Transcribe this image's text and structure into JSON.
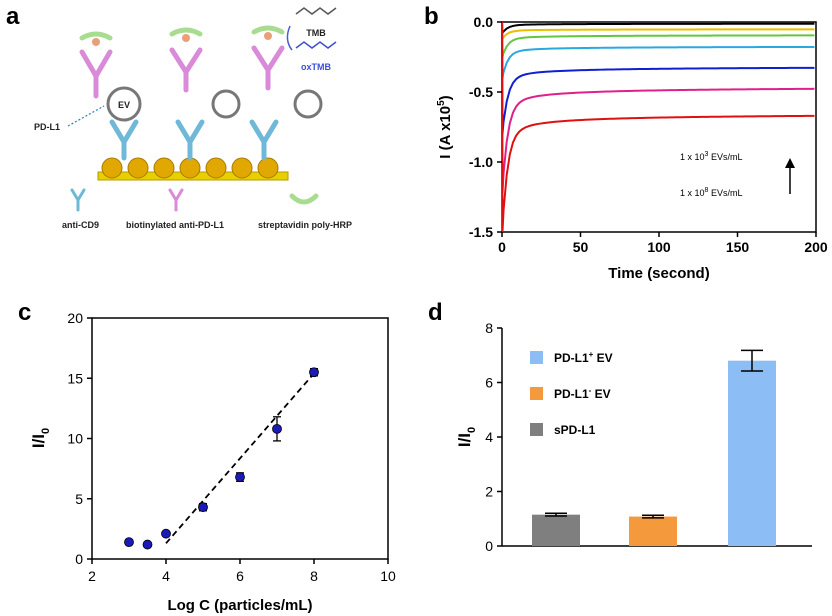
{
  "panel_labels": {
    "a": "a",
    "b": "b",
    "c": "c",
    "d": "d"
  },
  "schematic": {
    "tmb_label": "TMB",
    "oxtmb_label": "oxTMB",
    "ev_label": "EV",
    "pdl1_label": "PD-L1",
    "legend": {
      "anti_cd9": "anti-CD9",
      "biotinylated": "biotinylated anti-PD-L1",
      "streptavidin": "streptavidin poly-HRP"
    },
    "colors": {
      "gold": "#e8b400",
      "cd9": "#6fb8d8",
      "pdl1_ab": "#d98ad8",
      "strep": "#a8dc90",
      "oxtmb": "#3b4fd6"
    }
  },
  "chart_data": [
    {
      "id": "b",
      "type": "line",
      "xlabel": "Time (second)",
      "ylabel_parts": [
        "I (A x10",
        "5",
        ")"
      ],
      "xlim": [
        0,
        200
      ],
      "ylim": [
        -1.5,
        0.0
      ],
      "xticks": [
        0,
        50,
        100,
        150,
        200
      ],
      "yticks": [
        -1.5,
        -1.0,
        -0.5,
        0.0
      ],
      "ytick_labels": [
        "-1.5",
        "-1.0",
        "-0.5",
        "0.0"
      ],
      "annotation_top": {
        "pre": "1 x 10",
        "exp": "3",
        "post": " EVs/mL"
      },
      "annotation_bottom": {
        "pre": "1 x 10",
        "exp": "8",
        "post": " EVs/mL"
      },
      "series": [
        {
          "name": "black",
          "color": "#000000",
          "start": -0.08,
          "plateau": -0.01
        },
        {
          "name": "yellow",
          "color": "#e8c000",
          "start": -0.12,
          "plateau": -0.05
        },
        {
          "name": "green",
          "color": "#60c840",
          "start": -0.25,
          "plateau": -0.09
        },
        {
          "name": "cyan",
          "color": "#2aa8e0",
          "start": -0.4,
          "plateau": -0.17
        },
        {
          "name": "blue",
          "color": "#1020d0",
          "start": -0.8,
          "plateau": -0.31
        },
        {
          "name": "magenta",
          "color": "#e0208a",
          "start": -1.22,
          "plateau": -0.45
        },
        {
          "name": "red",
          "color": "#e01010",
          "start": -1.5,
          "plateau": -0.64
        }
      ]
    },
    {
      "id": "c",
      "type": "scatter",
      "xlabel": "Log C (particles/mL)",
      "ylabel_main": "I/I",
      "ylabel_sub": "0",
      "xlim": [
        2,
        10
      ],
      "ylim": [
        0,
        20
      ],
      "xticks": [
        2,
        4,
        6,
        8,
        10
      ],
      "yticks": [
        0,
        5,
        10,
        15,
        20
      ],
      "points": [
        {
          "x": 3.0,
          "y": 1.4,
          "err": 0.1
        },
        {
          "x": 3.5,
          "y": 1.2,
          "err": 0.1
        },
        {
          "x": 4.0,
          "y": 2.1,
          "err": 0.1
        },
        {
          "x": 5.0,
          "y": 4.3,
          "err": 0.3
        },
        {
          "x": 6.0,
          "y": 6.8,
          "err": 0.35
        },
        {
          "x": 7.0,
          "y": 10.8,
          "err": 1.0
        },
        {
          "x": 8.0,
          "y": 15.5,
          "err": 0.3
        }
      ],
      "fit": {
        "x": [
          4.0,
          8.0
        ],
        "y": [
          1.3,
          15.4
        ]
      },
      "marker_color": "#1a1ab8"
    },
    {
      "id": "d",
      "type": "bar",
      "ylabel_main": "I/I",
      "ylabel_sub": "0",
      "ylim": [
        0,
        8
      ],
      "yticks": [
        0,
        2,
        4,
        6,
        8
      ],
      "categories": [
        "sPD-L1",
        "PD-L1- EV",
        "PD-L1+ EV"
      ],
      "values": [
        1.15,
        1.08,
        6.8
      ],
      "errors": [
        0.05,
        0.05,
        0.38
      ],
      "colors": [
        "#7f7f7f",
        "#f59a3c",
        "#8cbdf5"
      ],
      "legend": [
        {
          "base": "PD-L1",
          "sup": "+",
          "rest": " EV",
          "color": "#8cbdf5"
        },
        {
          "base": "PD-L1",
          "sup": "-",
          "rest": " EV",
          "color": "#f59a3c"
        },
        {
          "base": "sPD-L1",
          "sup": "",
          "rest": "",
          "color": "#7f7f7f"
        }
      ]
    }
  ]
}
